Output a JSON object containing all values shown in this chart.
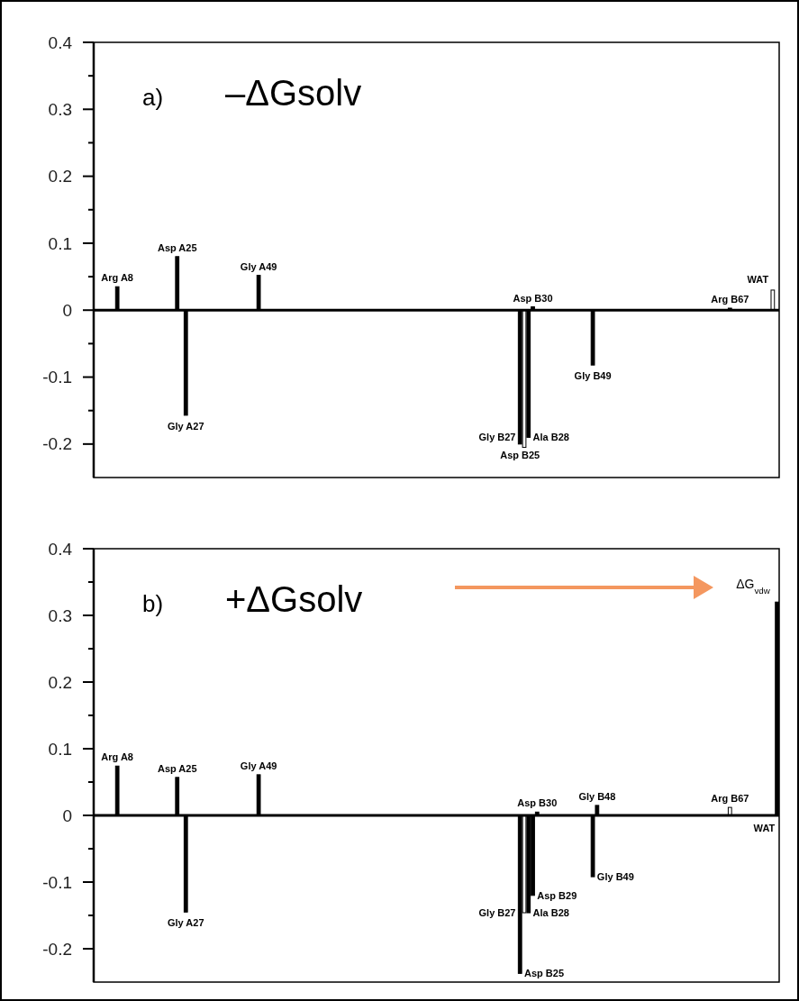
{
  "chart_data": [
    {
      "type": "bar",
      "categories": [
        null,
        null,
        null,
        null,
        null,
        "Arg A8",
        null,
        null,
        null,
        null,
        null,
        null,
        null,
        null,
        null,
        null,
        null,
        null,
        null,
        "Asp A25",
        null,
        "Gly A27",
        null,
        null,
        null,
        null,
        null,
        null,
        null,
        null,
        null,
        null,
        null,
        null,
        null,
        null,
        null,
        null,
        "Gly A49",
        null,
        null,
        null,
        null,
        null,
        null,
        null,
        null,
        null,
        null,
        null,
        null,
        null,
        null,
        null,
        null,
        null,
        null,
        null,
        null,
        null,
        null,
        null,
        null,
        null,
        null,
        null,
        null,
        null,
        null,
        null,
        null,
        null,
        null,
        null,
        null,
        null,
        null,
        null,
        null,
        null,
        null,
        null,
        null,
        null,
        null,
        null,
        null,
        null,
        null,
        null,
        null,
        null,
        null,
        null,
        null,
        null,
        null,
        null,
        null,
        "Asp B25",
        "Gly B27",
        "Ala B28",
        "Asp B30",
        null,
        null,
        null,
        null,
        null,
        null,
        null,
        null,
        null,
        null,
        null,
        null,
        null,
        "Gly B49",
        null,
        null,
        null,
        null,
        null,
        null,
        null,
        null,
        null,
        null,
        null,
        null,
        null,
        null,
        null,
        null,
        null,
        null,
        null,
        null,
        null,
        null,
        null,
        null,
        null,
        null,
        null,
        null,
        null,
        null,
        null,
        "Arg B67",
        null,
        null,
        null,
        null,
        null,
        null,
        null,
        null,
        null,
        "WAT",
        null
      ],
      "values": [
        null,
        null,
        null,
        null,
        null,
        0.035,
        null,
        null,
        null,
        null,
        null,
        null,
        null,
        null,
        null,
        null,
        null,
        null,
        null,
        0.08,
        null,
        -0.157,
        null,
        null,
        null,
        null,
        null,
        null,
        null,
        null,
        null,
        null,
        null,
        null,
        null,
        null,
        null,
        null,
        0.052,
        null,
        null,
        null,
        null,
        null,
        null,
        null,
        null,
        null,
        null,
        null,
        null,
        null,
        null,
        null,
        null,
        null,
        null,
        null,
        null,
        null,
        null,
        null,
        null,
        null,
        null,
        null,
        null,
        null,
        null,
        null,
        null,
        null,
        null,
        null,
        null,
        null,
        null,
        null,
        null,
        null,
        null,
        null,
        null,
        null,
        null,
        null,
        null,
        null,
        null,
        null,
        null,
        null,
        null,
        null,
        null,
        null,
        null,
        null,
        null,
        -0.2,
        -0.205,
        -0.19,
        0.005,
        null,
        null,
        null,
        null,
        null,
        null,
        null,
        null,
        null,
        null,
        null,
        null,
        null,
        -0.082,
        null,
        null,
        null,
        null,
        null,
        null,
        null,
        null,
        null,
        null,
        null,
        null,
        null,
        null,
        null,
        null,
        null,
        null,
        null,
        null,
        null,
        null,
        null,
        null,
        null,
        null,
        null,
        null,
        null,
        null,
        null,
        0.003,
        null,
        null,
        null,
        null,
        null,
        null,
        null,
        null,
        null,
        0.03,
        null
      ],
      "colors": [
        null,
        null,
        null,
        null,
        null,
        "#000000",
        null,
        null,
        null,
        null,
        null,
        null,
        null,
        null,
        null,
        null,
        null,
        null,
        null,
        "#000000",
        null,
        "#000000",
        null,
        null,
        null,
        null,
        null,
        null,
        null,
        null,
        null,
        null,
        null,
        null,
        null,
        null,
        null,
        null,
        "#000000",
        null,
        null,
        null,
        null,
        null,
        null,
        null,
        null,
        null,
        null,
        null,
        null,
        null,
        null,
        null,
        null,
        null,
        null,
        null,
        null,
        null,
        null,
        null,
        null,
        null,
        null,
        null,
        null,
        null,
        null,
        null,
        null,
        null,
        null,
        null,
        null,
        null,
        null,
        null,
        null,
        null,
        null,
        null,
        null,
        null,
        null,
        null,
        null,
        null,
        null,
        null,
        null,
        null,
        null,
        null,
        null,
        null,
        null,
        null,
        null,
        "#000000",
        "#ffffff",
        "#000000",
        "#000000",
        null,
        null,
        null,
        null,
        null,
        null,
        null,
        null,
        null,
        null,
        null,
        null,
        null,
        "#000000",
        null,
        null,
        null,
        null,
        null,
        null,
        null,
        null,
        null,
        null,
        null,
        null,
        null,
        null,
        null,
        null,
        null,
        null,
        null,
        null,
        null,
        null,
        null,
        null,
        null,
        null,
        null,
        null,
        null,
        null,
        null,
        "#000000",
        null,
        null,
        null,
        null,
        null,
        null,
        null,
        null,
        null,
        "#ffffff",
        null
      ],
      "ylim": [
        -0.25,
        0.4
      ],
      "yticks": [
        -0.2,
        {
          "value": -0.15,
          "label": null
        },
        -0.1,
        {
          "value": -0.05,
          "label": null
        },
        0,
        {
          "value": 0.05,
          "label": null
        },
        0.1,
        {
          "value": 0.15,
          "label": null
        },
        0.2,
        {
          "value": 0.25,
          "label": null
        },
        0.3,
        {
          "value": 0.35,
          "label": null
        },
        0.4
      ],
      "tick_labels": "y",
      "annotations": [
        "a)",
        "–ΔGsolv"
      ]
    },
    {
      "type": "bar",
      "categories": [
        null,
        null,
        null,
        null,
        null,
        "Arg A8",
        null,
        null,
        null,
        null,
        null,
        null,
        null,
        null,
        null,
        null,
        null,
        null,
        null,
        "Asp A25",
        null,
        "Gly A27",
        null,
        null,
        null,
        null,
        null,
        null,
        null,
        null,
        null,
        null,
        null,
        null,
        null,
        null,
        null,
        null,
        "Gly A49",
        null,
        null,
        null,
        null,
        null,
        null,
        null,
        null,
        null,
        null,
        null,
        null,
        null,
        null,
        null,
        null,
        null,
        null,
        null,
        null,
        null,
        null,
        null,
        null,
        null,
        null,
        null,
        null,
        null,
        null,
        null,
        null,
        null,
        null,
        null,
        null,
        null,
        null,
        null,
        null,
        null,
        null,
        null,
        null,
        null,
        null,
        null,
        null,
        null,
        null,
        null,
        null,
        null,
        null,
        null,
        null,
        null,
        null,
        null,
        null,
        "Asp B25",
        "Gly B27",
        "Ala B28",
        "Asp B29",
        "Asp B30",
        null,
        null,
        null,
        null,
        null,
        null,
        null,
        null,
        null,
        null,
        null,
        null,
        "Gly B49",
        "Gly B48",
        null,
        null,
        null,
        null,
        null,
        null,
        null,
        null,
        null,
        null,
        null,
        null,
        null,
        null,
        null,
        null,
        null,
        null,
        null,
        null,
        null,
        null,
        null,
        null,
        null,
        null,
        null,
        null,
        null,
        null,
        "Arg B67",
        null,
        null,
        null,
        null,
        null,
        null,
        null,
        null,
        null,
        null,
        "WAT"
      ],
      "values": [
        null,
        null,
        null,
        null,
        null,
        0.074,
        null,
        null,
        null,
        null,
        null,
        null,
        null,
        null,
        null,
        null,
        null,
        null,
        null,
        0.057,
        null,
        -0.145,
        null,
        null,
        null,
        null,
        null,
        null,
        null,
        null,
        null,
        null,
        null,
        null,
        null,
        null,
        null,
        null,
        0.061,
        null,
        null,
        null,
        null,
        null,
        null,
        null,
        null,
        null,
        null,
        null,
        null,
        null,
        null,
        null,
        null,
        null,
        null,
        null,
        null,
        null,
        null,
        null,
        null,
        null,
        null,
        null,
        null,
        null,
        null,
        null,
        null,
        null,
        null,
        null,
        null,
        null,
        null,
        null,
        null,
        null,
        null,
        null,
        null,
        null,
        null,
        null,
        null,
        null,
        null,
        null,
        null,
        null,
        null,
        null,
        null,
        null,
        null,
        null,
        null,
        -0.237,
        -0.146,
        -0.146,
        -0.12,
        0.005,
        null,
        null,
        null,
        null,
        null,
        null,
        null,
        null,
        null,
        null,
        null,
        null,
        -0.092,
        0.015,
        null,
        null,
        null,
        null,
        null,
        null,
        null,
        null,
        null,
        null,
        null,
        null,
        null,
        null,
        null,
        null,
        null,
        null,
        null,
        null,
        null,
        null,
        null,
        null,
        null,
        null,
        null,
        null,
        null,
        null,
        0.012,
        null,
        null,
        null,
        null,
        null,
        null,
        null,
        null,
        null,
        null,
        0.32
      ],
      "colors": [
        null,
        null,
        null,
        null,
        null,
        "#000000",
        null,
        null,
        null,
        null,
        null,
        null,
        null,
        null,
        null,
        null,
        null,
        null,
        null,
        "#000000",
        null,
        "#000000",
        null,
        null,
        null,
        null,
        null,
        null,
        null,
        null,
        null,
        null,
        null,
        null,
        null,
        null,
        null,
        null,
        "#000000",
        null,
        null,
        null,
        null,
        null,
        null,
        null,
        null,
        null,
        null,
        null,
        null,
        null,
        null,
        null,
        null,
        null,
        null,
        null,
        null,
        null,
        null,
        null,
        null,
        null,
        null,
        null,
        null,
        null,
        null,
        null,
        null,
        null,
        null,
        null,
        null,
        null,
        null,
        null,
        null,
        null,
        null,
        null,
        null,
        null,
        null,
        null,
        null,
        null,
        null,
        null,
        null,
        null,
        null,
        null,
        null,
        null,
        null,
        null,
        null,
        "#000000",
        "#ffffff",
        "#000000",
        "#000000",
        "#000000",
        null,
        null,
        null,
        null,
        null,
        null,
        null,
        null,
        null,
        null,
        null,
        null,
        "#000000",
        "#000000",
        null,
        null,
        null,
        null,
        null,
        null,
        null,
        null,
        null,
        null,
        null,
        null,
        null,
        null,
        null,
        null,
        null,
        null,
        null,
        null,
        null,
        null,
        null,
        null,
        null,
        null,
        null,
        null,
        null,
        null,
        "#ffffff",
        null,
        null,
        null,
        null,
        null,
        null,
        null,
        null,
        null,
        null,
        "#000000"
      ],
      "ylim": [
        -0.25,
        0.4
      ],
      "yticks": [
        -0.2,
        {
          "value": -0.15,
          "label": null
        },
        -0.1,
        {
          "value": -0.05,
          "label": null
        },
        0,
        {
          "value": 0.05,
          "label": null
        },
        0.1,
        {
          "value": 0.15,
          "label": null
        },
        0.2,
        {
          "value": 0.25,
          "label": null
        },
        0.3,
        {
          "value": 0.35,
          "label": null
        },
        0.4
      ],
      "tick_labels": "y",
      "annotations": [
        "b)",
        "+ΔGsolv",
        "ΔG$_{vdw}$"
      ]
    }
  ]
}
